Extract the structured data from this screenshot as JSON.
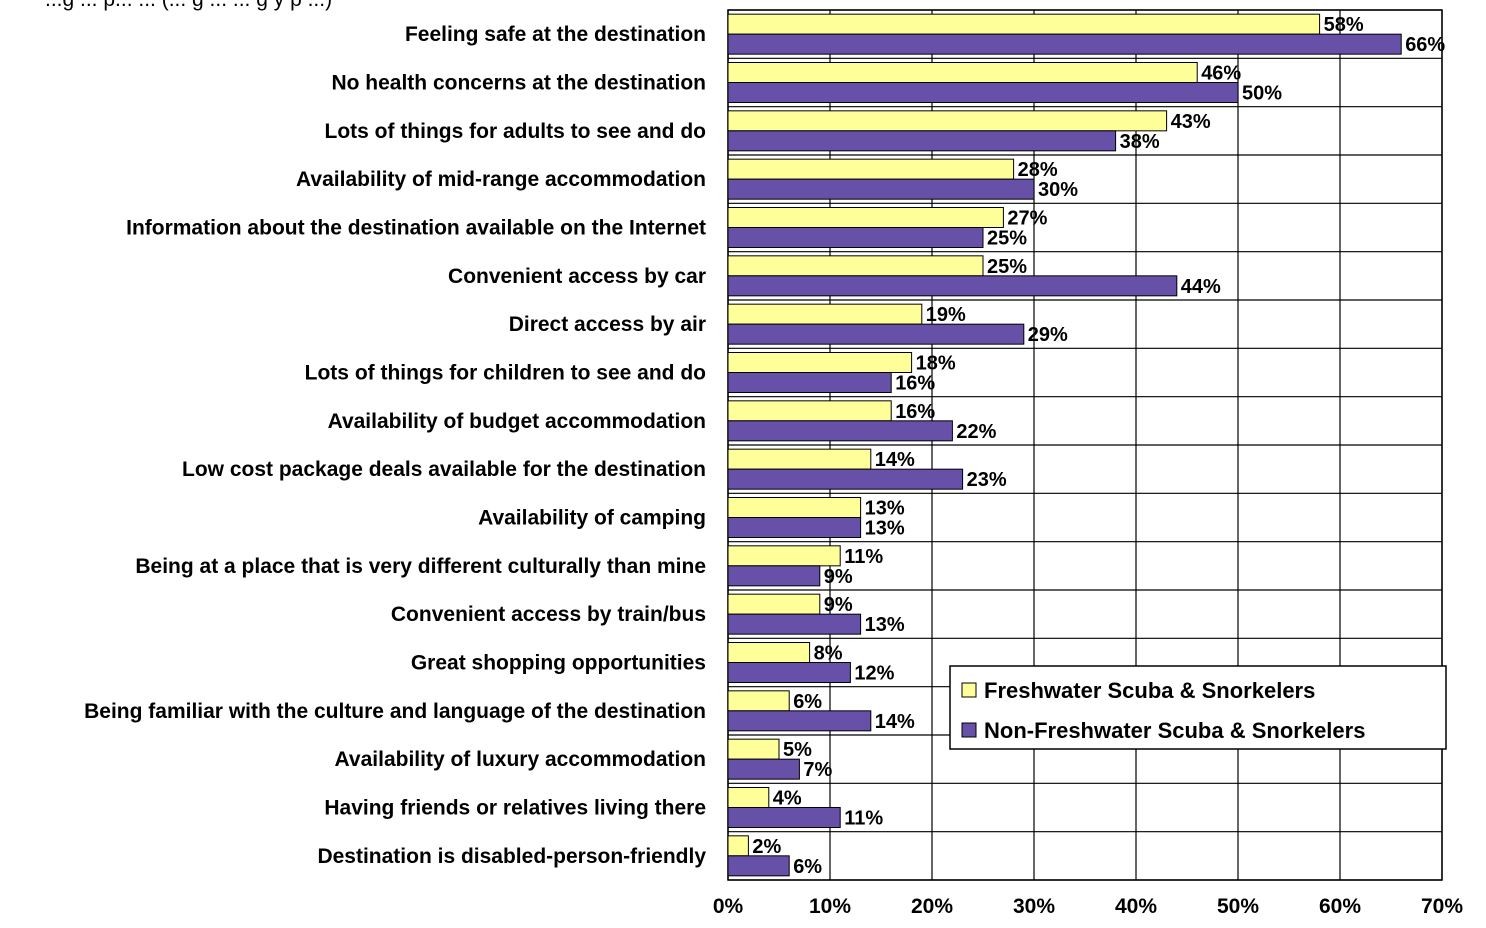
{
  "chart_data": {
    "type": "bar",
    "orientation": "horizontal",
    "title": "...g ... p... ... (... g ... ... g y p ...)",
    "xlabel": "",
    "ylabel": "",
    "xlim": [
      0,
      70
    ],
    "x_ticks": [
      "0%",
      "10%",
      "20%",
      "30%",
      "40%",
      "50%",
      "60%",
      "70%"
    ],
    "grid": "vertical",
    "legend_position": "bottom-right",
    "categories": [
      "Feeling safe at the destination",
      "No health concerns at the destination",
      "Lots of things for adults to see and do",
      "Availability of mid-range accommodation",
      "Information about the destination available on the Internet",
      "Convenient access by car",
      "Direct access by air",
      "Lots of things for children to see and do",
      "Availability of budget accommodation",
      "Low cost package deals available for the destination",
      "Availability of camping",
      "Being at a place that is very different culturally than mine",
      "Convenient access by train/bus",
      "Great shopping opportunities",
      "Being familiar with the culture and language of the destination",
      "Availability of luxury accommodation",
      "Having friends or relatives living there",
      "Destination is disabled-person-friendly"
    ],
    "series": [
      {
        "name": "Freshwater Scuba & Snorkelers",
        "color": "#FFFF99",
        "values": [
          58,
          46,
          43,
          28,
          27,
          25,
          19,
          18,
          16,
          14,
          13,
          11,
          9,
          8,
          6,
          5,
          4,
          2
        ],
        "labels": [
          "58%",
          "46%",
          "43%",
          "28%",
          "27%",
          "25%",
          "19%",
          "18%",
          "16%",
          "14%",
          "13%",
          "11%",
          "9%",
          "8%",
          "6%",
          "5%",
          "4%",
          "2%"
        ]
      },
      {
        "name": "Non-Freshwater Scuba & Snorkelers",
        "color": "#6650A8",
        "values": [
          66,
          50,
          38,
          30,
          25,
          44,
          29,
          16,
          22,
          23,
          13,
          9,
          13,
          12,
          14,
          7,
          11,
          6
        ],
        "labels": [
          "66%",
          "50%",
          "38%",
          "30%",
          "25%",
          "44%",
          "29%",
          "16%",
          "22%",
          "23%",
          "13%",
          "9%",
          "13%",
          "12%",
          "14%",
          "7%",
          "11%",
          "6%"
        ]
      }
    ]
  }
}
